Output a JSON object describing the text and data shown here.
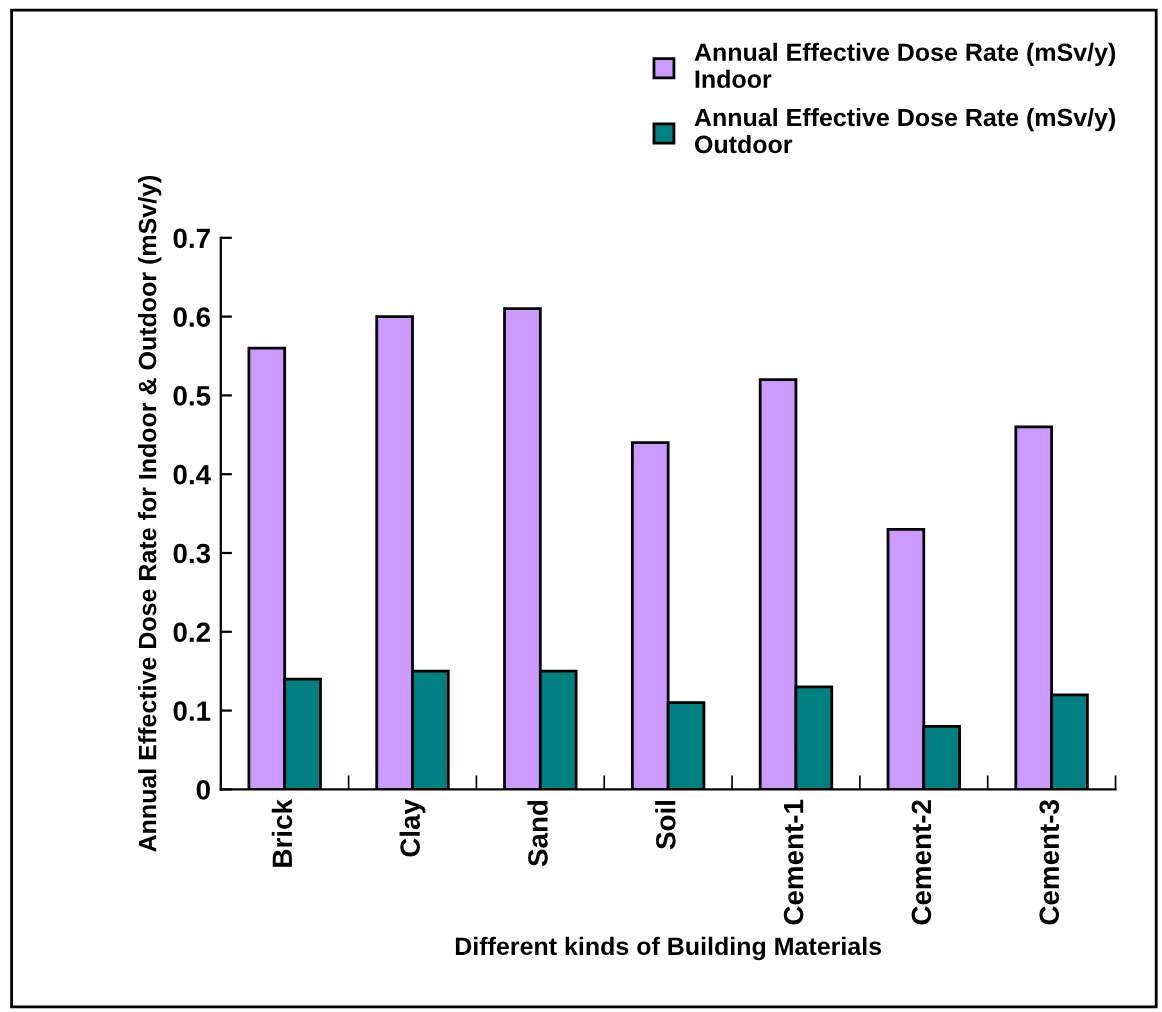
{
  "chart_data": {
    "type": "bar",
    "xlabel": "Different kinds of Building Materials",
    "ylabel": "Annual Effective Dose Rate for Indoor & Outdoor (mSv/y)",
    "categories": [
      "Brick",
      "Clay",
      "Sand",
      "Soil",
      "Cement-1",
      "Cement-2",
      "Cement-3"
    ],
    "series": [
      {
        "name": "Annual Effective Dose Rate (mSv/y)  Indoor",
        "color": "#cc99ff",
        "values": [
          0.56,
          0.6,
          0.61,
          0.44,
          0.52,
          0.33,
          0.46
        ]
      },
      {
        "name": "Annual Effective Dose Rate (mSv/y)  Outdoor",
        "color": "#008080",
        "values": [
          0.14,
          0.15,
          0.15,
          0.11,
          0.13,
          0.08,
          0.12
        ]
      }
    ],
    "ylim": [
      0,
      0.7
    ],
    "yticks": [
      {
        "value": 0,
        "label": "0"
      },
      0.1,
      0.2,
      0.3,
      0.4,
      0.5,
      0.6,
      0.7
    ],
    "grid": false,
    "legend": "top right"
  }
}
